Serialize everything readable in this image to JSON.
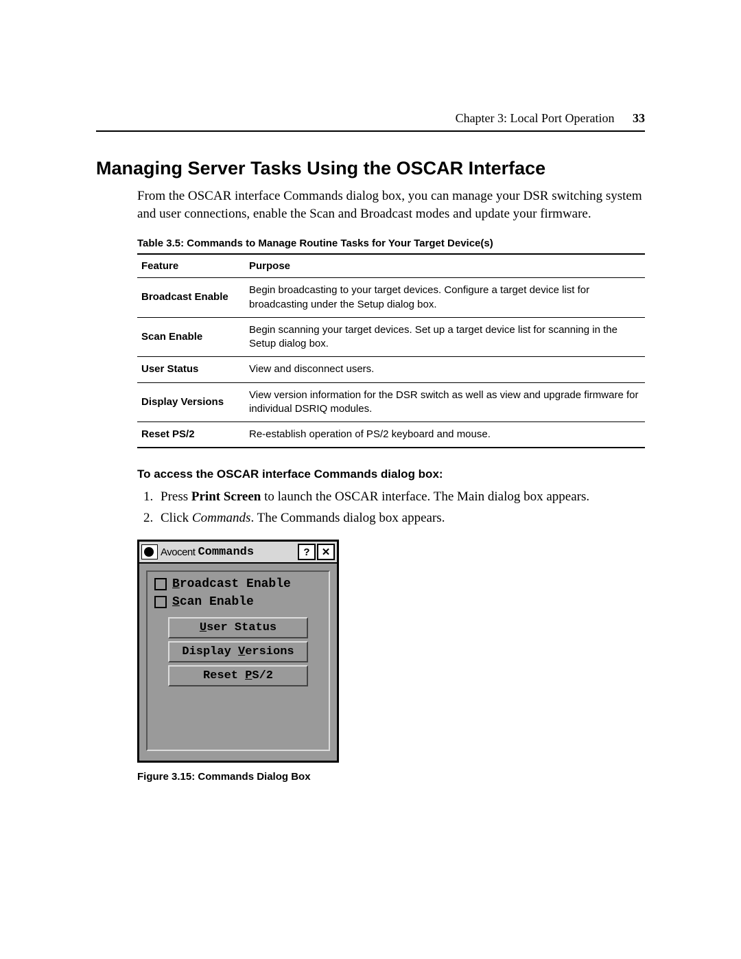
{
  "header": {
    "chapter": "Chapter 3: Local Port Operation",
    "page_number": "33"
  },
  "section_title": "Managing Server Tasks Using the OSCAR Interface",
  "intro": "From the OSCAR interface Commands dialog box, you can manage your DSR switching system and user connections, enable the Scan and Broadcast modes and update your firmware.",
  "table": {
    "caption": "Table 3.5: Commands to Manage Routine Tasks for Your Target Device(s)",
    "columns": [
      "Feature",
      "Purpose"
    ],
    "rows": [
      [
        "Broadcast Enable",
        "Begin broadcasting to your target devices. Configure a target device list for broadcasting under the Setup dialog box."
      ],
      [
        "Scan Enable",
        "Begin scanning your target devices. Set up a target device list for scanning in the Setup dialog box."
      ],
      [
        "User Status",
        "View and disconnect users."
      ],
      [
        "Display Versions",
        "View version information for the DSR switch as well as view and upgrade firmware for individual DSRIQ modules."
      ],
      [
        "Reset PS/2",
        "Re-establish operation of PS/2 keyboard and mouse."
      ]
    ]
  },
  "subhead": "To access the OSCAR interface Commands dialog box:",
  "steps": {
    "s1_pre": "Press ",
    "s1_bold": "Print Screen",
    "s1_post": " to launch the OSCAR interface. The Main dialog box appears.",
    "s2_pre": "Click ",
    "s2_italic": "Commands",
    "s2_post": ". The Commands dialog box appears."
  },
  "dialog": {
    "brand": "Avocent",
    "title": "Commands",
    "help_symbol": "?",
    "close_symbol": "✕",
    "checkboxes": {
      "broadcast_pre": "B",
      "broadcast_post": "roadcast Enable",
      "scan_pre": "S",
      "scan_post": "can Enable"
    },
    "buttons": {
      "user_pre": "U",
      "user_post": "ser Status",
      "disp_pre": "Display ",
      "disp_u": "V",
      "disp_post": "ersions",
      "reset_pre": "Reset ",
      "reset_u": "P",
      "reset_post": "S/2"
    }
  },
  "figure_caption": "Figure 3.15: Commands Dialog Box"
}
